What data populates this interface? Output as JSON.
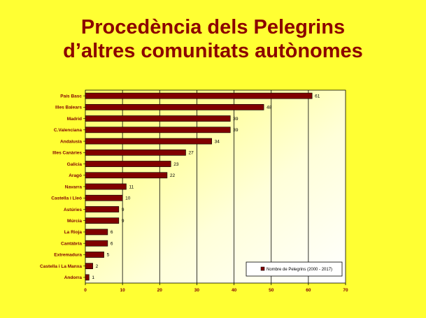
{
  "slide": {
    "title_line1": "Procedència dels Pelegrins",
    "title_line2": "d’altres comunitats autònomes"
  },
  "colors": {
    "background": "#ffff33",
    "bar": "#800000",
    "title": "#8b0000"
  },
  "chart_data": {
    "type": "bar",
    "orientation": "horizontal",
    "categories": [
      "País Basc",
      "Illes Balears",
      "Madrid",
      "C.Valenciana",
      "Andalusia",
      "Illes Canàries",
      "Galicia",
      "Aragó",
      "Navarra",
      "Castella i Lleó",
      "Astúries",
      "Múrcia",
      "La Rioja",
      "Cantàbria",
      "Extremadura",
      "Castella i La Manxa",
      "Andorra"
    ],
    "series": [
      {
        "name": "Nombre de Pelegrins (2000 - 2017)",
        "values": [
          61,
          48,
          39,
          39,
          34,
          27,
          23,
          22,
          11,
          10,
          9,
          9,
          6,
          6,
          5,
          2,
          1
        ]
      }
    ],
    "xlim": [
      0,
      70
    ],
    "xticks": [
      0,
      10,
      20,
      30,
      40,
      50,
      60,
      70
    ],
    "grid": true,
    "legend_position": "bottom-right"
  }
}
